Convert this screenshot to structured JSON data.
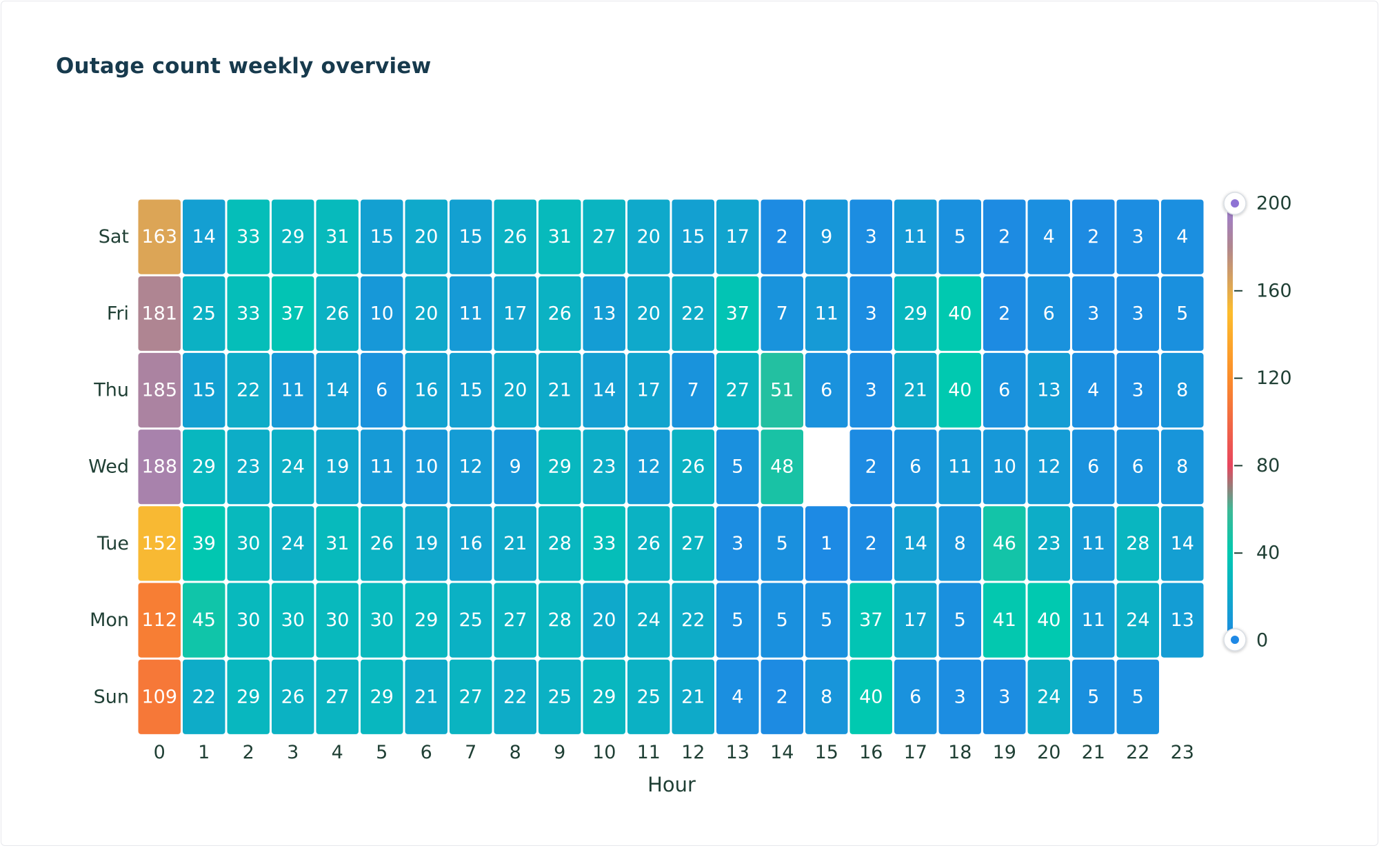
{
  "chart_data": {
    "type": "heatmap",
    "title": "Outage count weekly overview",
    "xlabel": "Hour",
    "ylabel": "",
    "x_categories": [
      "0",
      "1",
      "2",
      "3",
      "4",
      "5",
      "6",
      "7",
      "8",
      "9",
      "10",
      "11",
      "12",
      "13",
      "14",
      "15",
      "16",
      "17",
      "18",
      "19",
      "20",
      "21",
      "22",
      "23"
    ],
    "y_categories": [
      "Sat",
      "Fri",
      "Thu",
      "Wed",
      "Tue",
      "Mon",
      "Sun"
    ],
    "values": [
      [
        163,
        14,
        33,
        29,
        31,
        15,
        20,
        15,
        26,
        31,
        27,
        20,
        15,
        17,
        2,
        9,
        3,
        11,
        5,
        2,
        4,
        2,
        3,
        4
      ],
      [
        181,
        25,
        33,
        37,
        26,
        10,
        20,
        11,
        17,
        26,
        13,
        20,
        22,
        37,
        7,
        11,
        3,
        29,
        40,
        2,
        6,
        3,
        3,
        5
      ],
      [
        185,
        15,
        22,
        11,
        14,
        6,
        16,
        15,
        20,
        21,
        14,
        17,
        7,
        27,
        51,
        6,
        3,
        21,
        40,
        6,
        13,
        4,
        3,
        8
      ],
      [
        188,
        29,
        23,
        24,
        19,
        11,
        10,
        12,
        9,
        29,
        23,
        12,
        26,
        5,
        48,
        null,
        2,
        6,
        11,
        10,
        12,
        6,
        6,
        8
      ],
      [
        152,
        39,
        30,
        24,
        31,
        26,
        19,
        16,
        21,
        28,
        33,
        26,
        27,
        3,
        5,
        1,
        2,
        14,
        8,
        46,
        23,
        11,
        28,
        14
      ],
      [
        112,
        45,
        30,
        30,
        30,
        30,
        29,
        25,
        27,
        28,
        20,
        24,
        22,
        5,
        5,
        5,
        37,
        17,
        5,
        41,
        40,
        11,
        24,
        13
      ],
      [
        109,
        22,
        29,
        26,
        27,
        29,
        21,
        27,
        22,
        25,
        29,
        25,
        21,
        4,
        2,
        8,
        40,
        6,
        3,
        3,
        24,
        5,
        5,
        null
      ]
    ],
    "color_scale": {
      "range": [
        0,
        200
      ],
      "ticks": [
        0,
        40,
        80,
        120,
        160,
        200
      ],
      "colors": [
        "#1e88e5",
        "#00d2ad",
        "#e8455e",
        "#fb8c2a",
        "#fdbd2c",
        "#9b7bd9"
      ]
    },
    "legend_position": "right",
    "grid": false
  }
}
